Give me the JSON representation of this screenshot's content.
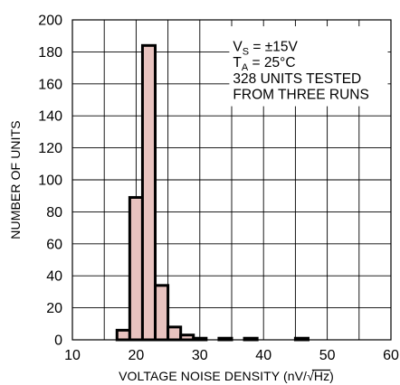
{
  "chart_data": {
    "type": "histogram",
    "xlabel": "VOLTAGE NOISE DENSITY (nV/√Hz)",
    "xlabel_main": "VOLTAGE NOISE DENSITY (nV/",
    "xlabel_radical": "√",
    "xlabel_hz": "Hz",
    "xlabel_close": ")",
    "ylabel": "NUMBER OF UNITS",
    "xlim": [
      10,
      60
    ],
    "ylim": [
      0,
      200
    ],
    "xticks": [
      10,
      20,
      30,
      40,
      50,
      60
    ],
    "yticks": [
      0,
      20,
      40,
      60,
      80,
      100,
      120,
      140,
      160,
      180,
      200
    ],
    "grid": true,
    "bin_width": 2,
    "bins": [
      {
        "x0": 17,
        "x1": 19,
        "value": 6
      },
      {
        "x0": 19,
        "x1": 21,
        "value": 89
      },
      {
        "x0": 21,
        "x1": 23,
        "value": 184
      },
      {
        "x0": 23,
        "x1": 25,
        "value": 34
      },
      {
        "x0": 25,
        "x1": 27,
        "value": 8
      },
      {
        "x0": 27,
        "x1": 29,
        "value": 3
      },
      {
        "x0": 29,
        "x1": 31,
        "value": 1
      },
      {
        "x0": 31,
        "x1": 33,
        "value": 0
      },
      {
        "x0": 33,
        "x1": 35,
        "value": 1
      },
      {
        "x0": 35,
        "x1": 37,
        "value": 0
      },
      {
        "x0": 37,
        "x1": 39,
        "value": 1
      },
      {
        "x0": 39,
        "x1": 41,
        "value": 0
      },
      {
        "x0": 41,
        "x1": 43,
        "value": 0
      },
      {
        "x0": 43,
        "x1": 45,
        "value": 0
      },
      {
        "x0": 45,
        "x1": 47,
        "value": 1
      }
    ],
    "bar_fill": "#e8c3bf",
    "bar_stroke": "#000000",
    "annotations": {
      "vs_main": "V",
      "vs_sub": "S",
      "vs_rest": " = ±15V",
      "ta_main": "T",
      "ta_sub": "A",
      "ta_rest": " = 25°C",
      "line3": "328 UNITS TESTED",
      "line4": "FROM THREE RUNS"
    }
  }
}
